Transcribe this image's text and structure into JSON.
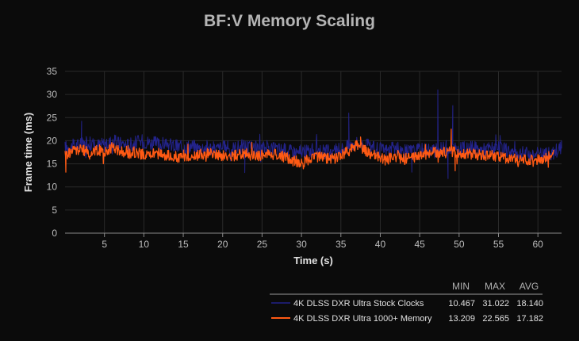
{
  "chart_data": {
    "type": "line",
    "title": "BF:V Memory Scaling",
    "xlabel": "Time (s)",
    "ylabel": "Frame time (ms)",
    "xlim": [
      0,
      63
    ],
    "ylim": [
      0,
      35
    ],
    "x_ticks": [
      5,
      10,
      15,
      20,
      25,
      30,
      35,
      40,
      45,
      50,
      55,
      60
    ],
    "y_ticks": [
      0,
      5,
      10,
      15,
      20,
      25,
      30,
      35
    ],
    "grid": true,
    "legend_placement": "bottom-right",
    "stat_headers": [
      "MIN",
      "MAX",
      "AVG"
    ],
    "series": [
      {
        "name": "4K DLSS DXR Ultra Stock Clocks",
        "color": "#23238a",
        "min": "10.467",
        "max": "31.022",
        "avg": "18.140",
        "x": [
          0,
          1,
          2,
          3,
          4,
          5,
          6,
          7,
          8,
          9,
          10,
          11,
          12,
          13,
          14,
          15,
          16,
          17,
          18,
          19,
          20,
          21,
          22,
          23,
          24,
          25,
          26,
          27,
          28,
          29,
          30,
          31,
          32,
          33,
          34,
          35,
          36,
          37,
          38,
          39,
          40,
          41,
          42,
          43,
          44,
          45,
          46,
          47,
          48,
          49,
          50,
          51,
          52,
          53,
          54,
          55,
          56,
          57,
          58,
          59,
          60,
          61,
          62,
          63
        ],
        "values": [
          18.5,
          18.8,
          19.2,
          19.5,
          19.0,
          19.3,
          19.8,
          19.4,
          19.1,
          19.6,
          19.9,
          19.5,
          19.2,
          19.4,
          18.8,
          18.6,
          18.9,
          18.4,
          18.7,
          18.2,
          18.5,
          18.3,
          18.6,
          18.9,
          18.1,
          18.4,
          18.7,
          18.2,
          17.9,
          17.6,
          17.4,
          17.8,
          18.1,
          17.7,
          17.5,
          18.2,
          18.8,
          19.5,
          19.1,
          18.4,
          18.0,
          17.9,
          18.3,
          17.6,
          17.8,
          18.0,
          18.2,
          17.9,
          18.4,
          18.6,
          18.1,
          18.5,
          18.3,
          18.0,
          18.4,
          18.2,
          17.9,
          17.6,
          17.3,
          17.2,
          17.0,
          17.1,
          17.4,
          18.6
        ],
        "spikes": [
          [
            2.1,
            24.2
          ],
          [
            22.8,
            13.1
          ],
          [
            36.0,
            26.0
          ],
          [
            44.0,
            13.2
          ],
          [
            47.3,
            31.0
          ],
          [
            48.6,
            11.8
          ],
          [
            49.2,
            27.6
          ],
          [
            63.0,
            20.0
          ]
        ]
      },
      {
        "name": "4K DLSS DXR Ultra 1000+ Memory",
        "color": "#ff5a14",
        "min": "13.209",
        "max": "22.565",
        "avg": "17.182",
        "x": [
          0,
          1,
          2,
          3,
          4,
          5,
          6,
          7,
          8,
          9,
          10,
          11,
          12,
          13,
          14,
          15,
          16,
          17,
          18,
          19,
          20,
          21,
          22,
          23,
          24,
          25,
          26,
          27,
          28,
          29,
          30,
          31,
          32,
          33,
          34,
          35,
          36,
          37,
          38,
          39,
          40,
          41,
          42,
          43,
          44,
          45,
          46,
          47,
          48,
          49,
          50,
          51,
          52,
          53,
          54,
          55,
          56,
          57,
          58,
          59,
          60,
          61,
          62
        ],
        "values": [
          16.8,
          17.9,
          18.1,
          17.5,
          18.0,
          17.7,
          18.6,
          17.9,
          17.2,
          17.6,
          16.9,
          17.0,
          17.3,
          16.8,
          16.5,
          16.3,
          16.7,
          16.9,
          17.4,
          17.0,
          16.8,
          16.6,
          16.9,
          17.2,
          16.7,
          16.9,
          17.3,
          16.8,
          16.4,
          15.6,
          15.3,
          16.0,
          16.6,
          16.2,
          16.1,
          16.8,
          17.7,
          19.2,
          18.0,
          16.9,
          16.3,
          16.1,
          16.6,
          16.0,
          16.4,
          16.8,
          17.2,
          17.5,
          17.4,
          17.8,
          17.3,
          17.1,
          17.0,
          16.8,
          16.9,
          16.6,
          16.2,
          16.0,
          15.8,
          15.7,
          15.9,
          16.2,
          17.0
        ],
        "spikes": [
          [
            0.1,
            13.2
          ],
          [
            49.0,
            22.5
          ],
          [
            49.5,
            13.5
          ],
          [
            37.5,
            20.8
          ],
          [
            8.0,
            18.9
          ]
        ]
      }
    ]
  }
}
